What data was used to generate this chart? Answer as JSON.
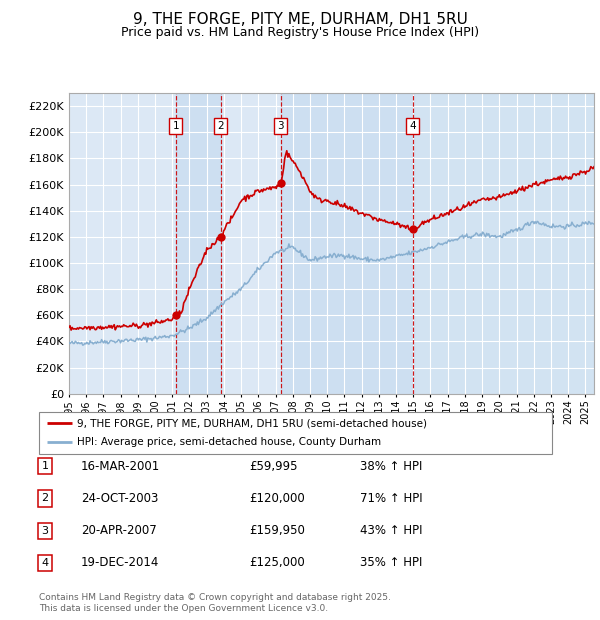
{
  "title": "9, THE FORGE, PITY ME, DURHAM, DH1 5RU",
  "subtitle": "Price paid vs. HM Land Registry's House Price Index (HPI)",
  "legend_line1": "9, THE FORGE, PITY ME, DURHAM, DH1 5RU (semi-detached house)",
  "legend_line2": "HPI: Average price, semi-detached house, County Durham",
  "footer": "Contains HM Land Registry data © Crown copyright and database right 2025.\nThis data is licensed under the Open Government Licence v3.0.",
  "ylim": [
    0,
    230000
  ],
  "yticks": [
    0,
    20000,
    40000,
    60000,
    80000,
    100000,
    120000,
    140000,
    160000,
    180000,
    200000,
    220000
  ],
  "xmin": 1995.0,
  "xmax": 2025.5,
  "transactions": [
    {
      "num": 1,
      "date": "16-MAR-2001",
      "price": 59995,
      "price_str": "£59,995",
      "pct": "38%",
      "x": 2001.21
    },
    {
      "num": 2,
      "date": "24-OCT-2003",
      "price": 120000,
      "price_str": "£120,000",
      "pct": "71%",
      "x": 2003.81
    },
    {
      "num": 3,
      "date": "20-APR-2007",
      "price": 159950,
      "price_str": "£159,950",
      "pct": "43%",
      "x": 2007.3
    },
    {
      "num": 4,
      "date": "19-DEC-2014",
      "price": 125000,
      "price_str": "£125,000",
      "pct": "35%",
      "x": 2014.96
    }
  ],
  "plot_bg": "#dce8f5",
  "red_color": "#cc0000",
  "blue_color": "#88afd0",
  "dashed_color": "#cc0000",
  "grid_color": "#ffffff",
  "marker_box_color": "#cc0000",
  "shade_color": "#ccddf0"
}
